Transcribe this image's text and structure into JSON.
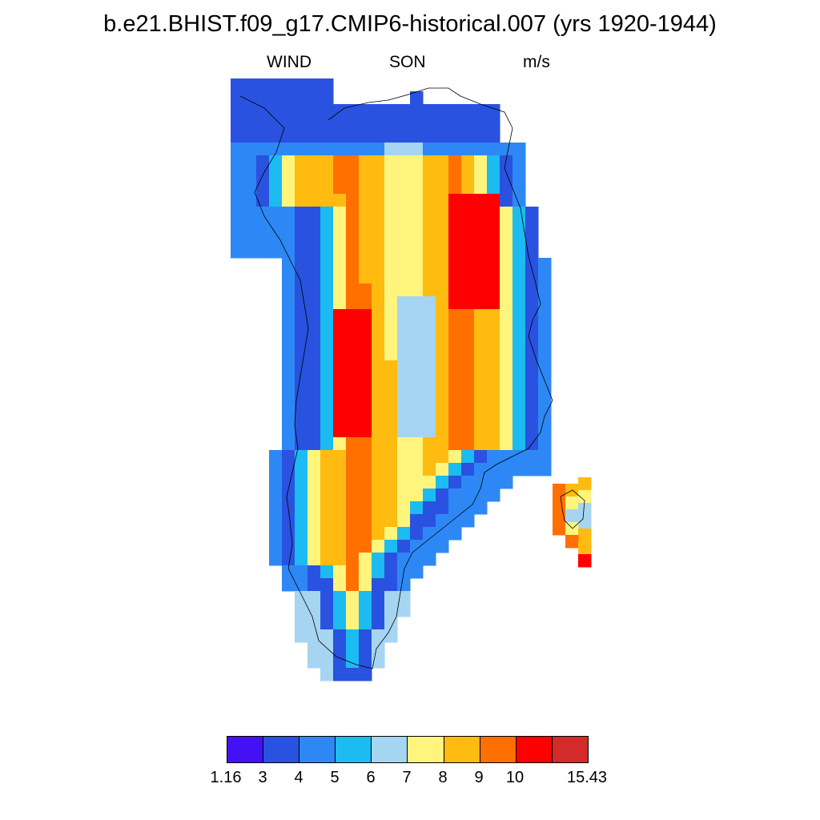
{
  "header": {
    "title": "b.e21.BHIST.f09_g17.CMIP6-historical.007 (yrs 1920-1944)",
    "left_label": "WIND",
    "center_label": "SON",
    "right_label": "m/s"
  },
  "colorbar": {
    "colors": [
      "#4410f5",
      "#2a52e0",
      "#2d88f5",
      "#1cbbf2",
      "#a6d5f2",
      "#fff57d",
      "#ffbb10",
      "#ff7000",
      "#ff0000",
      "#d42a2a"
    ],
    "labels": [
      "1.16",
      "3",
      "4",
      "5",
      "6",
      "7",
      "8",
      "9",
      "10",
      "15.43"
    ]
  },
  "map": {
    "region": "Greenland",
    "variable": "WIND",
    "season": "SON",
    "units": "m/s"
  }
}
